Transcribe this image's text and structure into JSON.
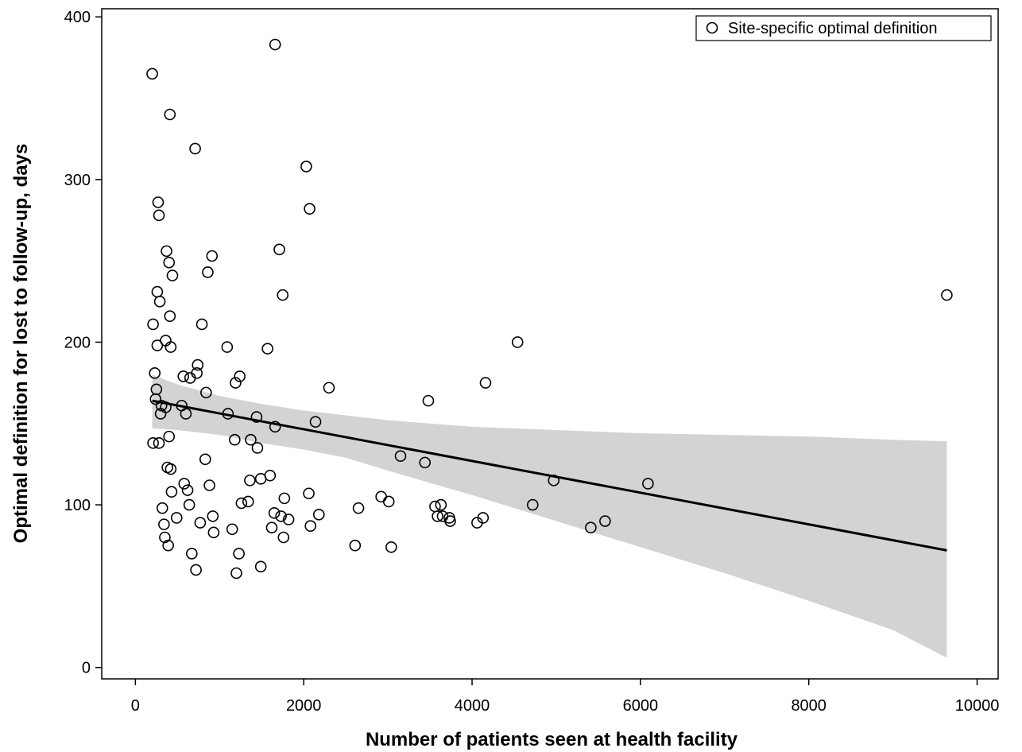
{
  "chart_data": {
    "type": "scatter",
    "title": "",
    "xlabel": "Number of patients seen at health facility",
    "ylabel": "Optimal definition for lost to follow-up, days",
    "xlim": [
      -400,
      10250
    ],
    "ylim": [
      -7,
      405
    ],
    "xticks": [
      0,
      2000,
      4000,
      6000,
      8000,
      10000
    ],
    "yticks": [
      0,
      100,
      200,
      300,
      400
    ],
    "grid": false,
    "legend": {
      "position": "top-right",
      "entries": [
        "Site-specific optimal definition"
      ]
    },
    "series": [
      {
        "name": "Site-specific optimal definition",
        "marker": "hollow-circle",
        "color": "#000000",
        "points": [
          [
            200,
            365
          ],
          [
            230,
            181
          ],
          [
            250,
            171
          ],
          [
            240,
            165
          ],
          [
            210,
            138
          ],
          [
            280,
            138
          ],
          [
            260,
            231
          ],
          [
            290,
            225
          ],
          [
            260,
            198
          ],
          [
            210,
            211
          ],
          [
            270,
            286
          ],
          [
            280,
            278
          ],
          [
            310,
            161
          ],
          [
            300,
            156
          ],
          [
            320,
            98
          ],
          [
            340,
            88
          ],
          [
            350,
            80
          ],
          [
            360,
            160
          ],
          [
            370,
            256
          ],
          [
            360,
            201
          ],
          [
            380,
            123
          ],
          [
            390,
            75
          ],
          [
            400,
            249
          ],
          [
            400,
            142
          ],
          [
            410,
            340
          ],
          [
            410,
            216
          ],
          [
            420,
            197
          ],
          [
            420,
            122
          ],
          [
            430,
            108
          ],
          [
            440,
            241
          ],
          [
            490,
            92
          ],
          [
            550,
            161
          ],
          [
            570,
            179
          ],
          [
            580,
            113
          ],
          [
            600,
            156
          ],
          [
            620,
            109
          ],
          [
            640,
            100
          ],
          [
            650,
            178
          ],
          [
            670,
            70
          ],
          [
            710,
            319
          ],
          [
            720,
            60
          ],
          [
            730,
            181
          ],
          [
            740,
            186
          ],
          [
            770,
            89
          ],
          [
            790,
            211
          ],
          [
            830,
            128
          ],
          [
            840,
            169
          ],
          [
            860,
            243
          ],
          [
            880,
            112
          ],
          [
            910,
            253
          ],
          [
            920,
            93
          ],
          [
            930,
            83
          ],
          [
            1090,
            197
          ],
          [
            1100,
            156
          ],
          [
            1150,
            85
          ],
          [
            1180,
            140
          ],
          [
            1190,
            175
          ],
          [
            1200,
            58
          ],
          [
            1230,
            70
          ],
          [
            1240,
            179
          ],
          [
            1260,
            101
          ],
          [
            1340,
            102
          ],
          [
            1360,
            115
          ],
          [
            1370,
            140
          ],
          [
            1440,
            154
          ],
          [
            1450,
            135
          ],
          [
            1490,
            62
          ],
          [
            1490,
            116
          ],
          [
            1570,
            196
          ],
          [
            1600,
            118
          ],
          [
            1620,
            86
          ],
          [
            1650,
            95
          ],
          [
            1660,
            383
          ],
          [
            1660,
            148
          ],
          [
            1710,
            257
          ],
          [
            1730,
            93
          ],
          [
            1750,
            229
          ],
          [
            1760,
            80
          ],
          [
            1770,
            104
          ],
          [
            1820,
            91
          ],
          [
            2030,
            308
          ],
          [
            2060,
            107
          ],
          [
            2070,
            282
          ],
          [
            2080,
            87
          ],
          [
            2140,
            151
          ],
          [
            2180,
            94
          ],
          [
            2300,
            172
          ],
          [
            2610,
            75
          ],
          [
            2650,
            98
          ],
          [
            2920,
            105
          ],
          [
            3010,
            102
          ],
          [
            3040,
            74
          ],
          [
            3150,
            130
          ],
          [
            3440,
            126
          ],
          [
            3480,
            164
          ],
          [
            3560,
            99
          ],
          [
            3590,
            93
          ],
          [
            3630,
            100
          ],
          [
            3650,
            93
          ],
          [
            3730,
            92
          ],
          [
            3740,
            90
          ],
          [
            4060,
            89
          ],
          [
            4130,
            92
          ],
          [
            4160,
            175
          ],
          [
            4540,
            200
          ],
          [
            4720,
            100
          ],
          [
            4970,
            115
          ],
          [
            5410,
            86
          ],
          [
            5580,
            90
          ],
          [
            6090,
            113
          ],
          [
            9640,
            229
          ]
        ]
      }
    ],
    "fit_line": {
      "x": [
        200,
        9640
      ],
      "y": [
        164,
        72
      ]
    },
    "confidence_band": {
      "x": [
        200,
        500,
        1000,
        1500,
        2000,
        2500,
        3000,
        4000,
        5000,
        6000,
        7000,
        8000,
        9000,
        9640
      ],
      "upper": [
        180,
        174,
        167,
        162,
        158,
        155,
        152,
        148,
        146,
        144,
        143,
        142,
        140,
        139
      ],
      "lower": [
        147,
        146,
        143,
        138,
        134,
        129,
        121,
        106,
        90,
        74,
        58,
        41,
        23,
        6
      ]
    }
  }
}
